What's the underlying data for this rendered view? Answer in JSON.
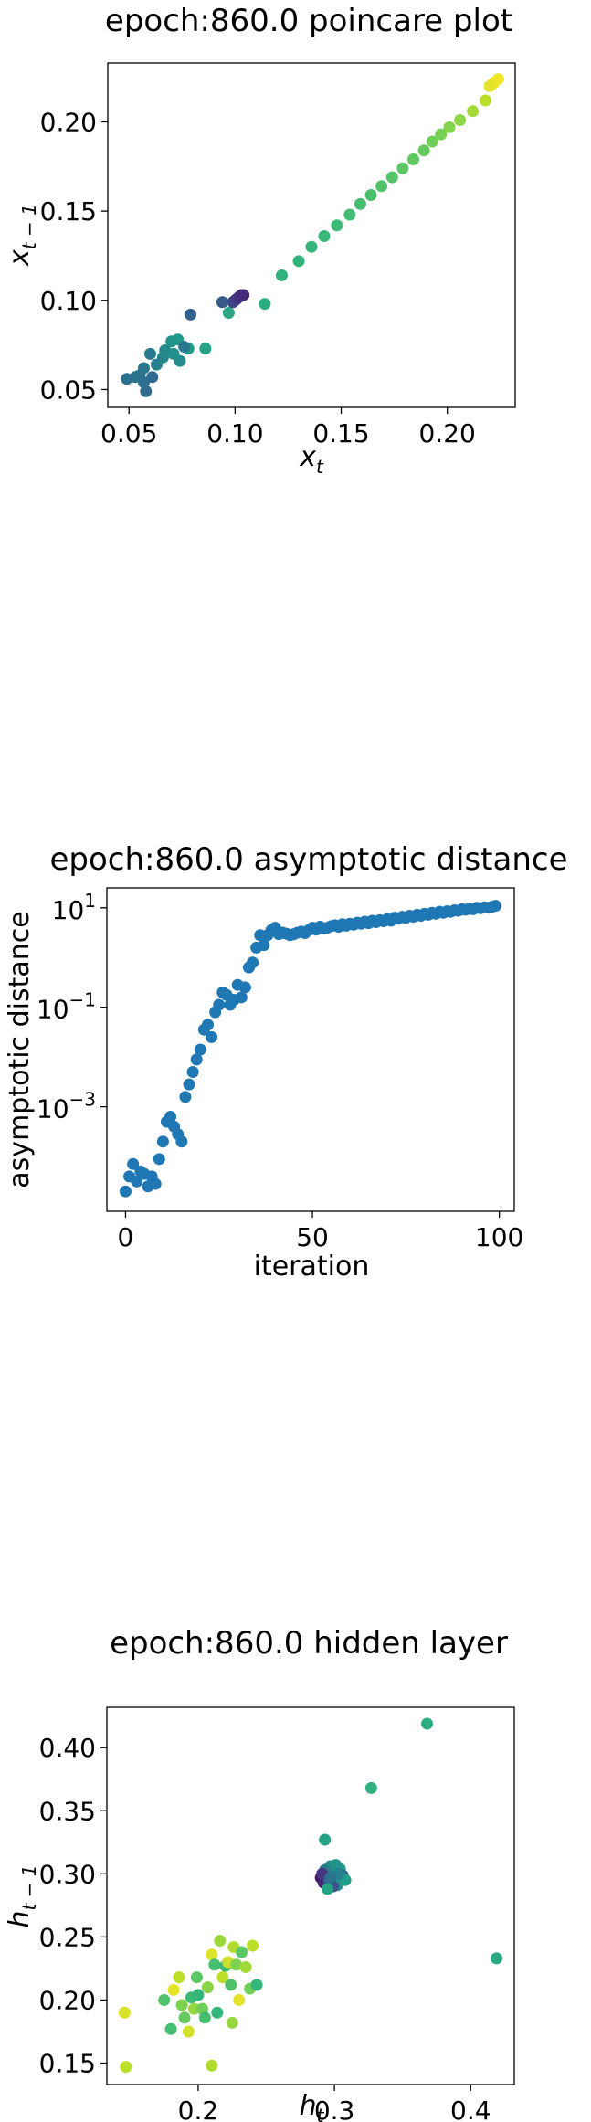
{
  "chart_data": [
    {
      "type": "scatter",
      "title": "epoch:860.0 poincare plot",
      "xlabel": "x_t",
      "ylabel": "x_{t-1}",
      "xlim": [
        0.04,
        0.232
      ],
      "ylim": [
        0.04,
        0.233
      ],
      "xticks": [
        {
          "v": 0.05,
          "label": "0.05"
        },
        {
          "v": 0.1,
          "label": "0.10"
        },
        {
          "v": 0.15,
          "label": "0.15"
        },
        {
          "v": 0.2,
          "label": "0.20"
        }
      ],
      "yticks": [
        {
          "v": 0.05,
          "label": "0.05"
        },
        {
          "v": 0.1,
          "label": "0.10"
        },
        {
          "v": 0.15,
          "label": "0.15"
        },
        {
          "v": 0.2,
          "label": "0.20"
        }
      ],
      "colormap": "viridis",
      "points": [
        {
          "x": 0.224,
          "y": 0.224,
          "c": 0.98
        },
        {
          "x": 0.222,
          "y": 0.222,
          "c": 0.98
        },
        {
          "x": 0.221,
          "y": 0.221,
          "c": 0.97
        },
        {
          "x": 0.22,
          "y": 0.22,
          "c": 0.96
        },
        {
          "x": 0.218,
          "y": 0.212,
          "c": 0.9
        },
        {
          "x": 0.212,
          "y": 0.206,
          "c": 0.86
        },
        {
          "x": 0.206,
          "y": 0.201,
          "c": 0.83
        },
        {
          "x": 0.201,
          "y": 0.197,
          "c": 0.81
        },
        {
          "x": 0.197,
          "y": 0.193,
          "c": 0.79
        },
        {
          "x": 0.193,
          "y": 0.189,
          "c": 0.78
        },
        {
          "x": 0.189,
          "y": 0.184,
          "c": 0.76
        },
        {
          "x": 0.184,
          "y": 0.179,
          "c": 0.75
        },
        {
          "x": 0.179,
          "y": 0.174,
          "c": 0.74
        },
        {
          "x": 0.174,
          "y": 0.169,
          "c": 0.73
        },
        {
          "x": 0.169,
          "y": 0.164,
          "c": 0.72
        },
        {
          "x": 0.164,
          "y": 0.159,
          "c": 0.71
        },
        {
          "x": 0.159,
          "y": 0.154,
          "c": 0.7
        },
        {
          "x": 0.154,
          "y": 0.148,
          "c": 0.69
        },
        {
          "x": 0.148,
          "y": 0.142,
          "c": 0.68
        },
        {
          "x": 0.142,
          "y": 0.136,
          "c": 0.67
        },
        {
          "x": 0.136,
          "y": 0.13,
          "c": 0.66
        },
        {
          "x": 0.13,
          "y": 0.122,
          "c": 0.65
        },
        {
          "x": 0.122,
          "y": 0.114,
          "c": 0.64
        },
        {
          "x": 0.114,
          "y": 0.098,
          "c": 0.62
        },
        {
          "x": 0.097,
          "y": 0.093,
          "c": 0.6
        },
        {
          "x": 0.086,
          "y": 0.073,
          "c": 0.58
        },
        {
          "x": 0.078,
          "y": 0.073,
          "c": 0.55
        },
        {
          "x": 0.073,
          "y": 0.078,
          "c": 0.54
        },
        {
          "x": 0.07,
          "y": 0.077,
          "c": 0.52
        },
        {
          "x": 0.071,
          "y": 0.07,
          "c": 0.5
        },
        {
          "x": 0.074,
          "y": 0.066,
          "c": 0.49
        },
        {
          "x": 0.067,
          "y": 0.072,
          "c": 0.48
        },
        {
          "x": 0.066,
          "y": 0.068,
          "c": 0.46
        },
        {
          "x": 0.063,
          "y": 0.064,
          "c": 0.44
        },
        {
          "x": 0.06,
          "y": 0.07,
          "c": 0.42
        },
        {
          "x": 0.057,
          "y": 0.062,
          "c": 0.4
        },
        {
          "x": 0.055,
          "y": 0.058,
          "c": 0.39
        },
        {
          "x": 0.053,
          "y": 0.057,
          "c": 0.38
        },
        {
          "x": 0.049,
          "y": 0.056,
          "c": 0.37
        },
        {
          "x": 0.057,
          "y": 0.054,
          "c": 0.36
        },
        {
          "x": 0.058,
          "y": 0.049,
          "c": 0.35
        },
        {
          "x": 0.061,
          "y": 0.057,
          "c": 0.34
        },
        {
          "x": 0.076,
          "y": 0.074,
          "c": 0.4
        },
        {
          "x": 0.079,
          "y": 0.092,
          "c": 0.3
        },
        {
          "x": 0.094,
          "y": 0.099,
          "c": 0.28
        },
        {
          "x": 0.099,
          "y": 0.099,
          "c": 0.22
        },
        {
          "x": 0.1,
          "y": 0.1,
          "c": 0.2
        },
        {
          "x": 0.101,
          "y": 0.101,
          "c": 0.18
        },
        {
          "x": 0.102,
          "y": 0.102,
          "c": 0.16
        },
        {
          "x": 0.103,
          "y": 0.103,
          "c": 0.14
        },
        {
          "x": 0.104,
          "y": 0.103,
          "c": 0.12
        }
      ]
    },
    {
      "type": "scatter",
      "title": "epoch:860.0 asymptotic distance",
      "xlabel": "iteration",
      "ylabel": "asymptotic distance",
      "yscale": "log",
      "xlim": [
        -5,
        104
      ],
      "ylim_log10": [
        -5.1,
        1.4
      ],
      "color": "#1f77b4",
      "xticks": [
        {
          "v": 0,
          "label": "0"
        },
        {
          "v": 50,
          "label": "50"
        },
        {
          "v": 100,
          "label": "100"
        }
      ],
      "yticks": [
        {
          "v": -3,
          "base": "10",
          "exp": "−3"
        },
        {
          "v": -1,
          "base": "10",
          "exp": "−1"
        },
        {
          "v": 1,
          "base": "10",
          "exp": "1"
        }
      ],
      "x": [
        0,
        1,
        2,
        3,
        4,
        5,
        6,
        7,
        8,
        9,
        10,
        11,
        12,
        13,
        14,
        15,
        16,
        17,
        18,
        19,
        20,
        21,
        22,
        23,
        24,
        25,
        26,
        27,
        28,
        29,
        30,
        31,
        32,
        33,
        34,
        35,
        36,
        37,
        38,
        39,
        40,
        41,
        42,
        43,
        44,
        45,
        46,
        47,
        48,
        49,
        50,
        51,
        52,
        53,
        54,
        55,
        56,
        57,
        58,
        59,
        60,
        61,
        62,
        63,
        64,
        65,
        66,
        67,
        68,
        69,
        70,
        71,
        72,
        73,
        74,
        75,
        76,
        77,
        78,
        79,
        80,
        81,
        82,
        83,
        84,
        85,
        86,
        87,
        88,
        89,
        90,
        91,
        92,
        93,
        94,
        95,
        96,
        97,
        98,
        99
      ],
      "log10_y": [
        -4.7,
        -4.4,
        -4.15,
        -4.5,
        -4.3,
        -4.35,
        -4.6,
        -4.4,
        -4.55,
        -4.05,
        -3.7,
        -3.3,
        -3.2,
        -3.4,
        -3.55,
        -3.7,
        -2.8,
        -2.55,
        -2.3,
        -2.05,
        -1.85,
        -1.45,
        -1.35,
        -1.6,
        -1.1,
        -0.95,
        -0.7,
        -0.75,
        -0.95,
        -0.85,
        -0.55,
        -0.8,
        -0.6,
        -0.2,
        -0.1,
        0.2,
        0.45,
        0.25,
        0.45,
        0.55,
        0.6,
        0.47,
        0.5,
        0.48,
        0.45,
        0.47,
        0.5,
        0.52,
        0.49,
        0.55,
        0.6,
        0.56,
        0.62,
        0.58,
        0.6,
        0.63,
        0.65,
        0.62,
        0.67,
        0.64,
        0.68,
        0.66,
        0.7,
        0.68,
        0.72,
        0.69,
        0.74,
        0.71,
        0.75,
        0.73,
        0.77,
        0.74,
        0.8,
        0.78,
        0.82,
        0.8,
        0.84,
        0.82,
        0.86,
        0.84,
        0.88,
        0.86,
        0.9,
        0.88,
        0.92,
        0.9,
        0.93,
        0.92,
        0.95,
        0.94,
        0.97,
        0.96,
        0.98,
        0.97,
        1.0,
        0.99,
        1.01,
        1.0,
        1.02,
        1.04
      ]
    },
    {
      "type": "scatter",
      "title": "epoch:860.0 hidden layer",
      "xlabel": "h_t",
      "ylabel": "h_{t-1}",
      "xlim": [
        0.133,
        0.432
      ],
      "ylim": [
        0.133,
        0.432
      ],
      "colormap": "viridis",
      "xticks": [
        {
          "v": 0.2,
          "label": "0.2"
        },
        {
          "v": 0.3,
          "label": "0.3"
        },
        {
          "v": 0.4,
          "label": "0.4"
        }
      ],
      "yticks": [
        {
          "v": 0.15,
          "label": "0.15"
        },
        {
          "v": 0.2,
          "label": "0.20"
        },
        {
          "v": 0.25,
          "label": "0.25"
        },
        {
          "v": 0.3,
          "label": "0.30"
        },
        {
          "v": 0.35,
          "label": "0.35"
        },
        {
          "v": 0.4,
          "label": "0.40"
        }
      ],
      "points": [
        {
          "x": 0.368,
          "y": 0.419,
          "c": 0.62
        },
        {
          "x": 0.327,
          "y": 0.368,
          "c": 0.64
        },
        {
          "x": 0.419,
          "y": 0.233,
          "c": 0.6
        },
        {
          "x": 0.293,
          "y": 0.327,
          "c": 0.58
        },
        {
          "x": 0.146,
          "y": 0.19,
          "c": 0.94
        },
        {
          "x": 0.147,
          "y": 0.147,
          "c": 0.9
        },
        {
          "x": 0.21,
          "y": 0.148,
          "c": 0.88
        },
        {
          "x": 0.175,
          "y": 0.2,
          "c": 0.72
        },
        {
          "x": 0.18,
          "y": 0.177,
          "c": 0.7
        },
        {
          "x": 0.182,
          "y": 0.208,
          "c": 0.96
        },
        {
          "x": 0.186,
          "y": 0.218,
          "c": 0.9
        },
        {
          "x": 0.188,
          "y": 0.196,
          "c": 0.8
        },
        {
          "x": 0.19,
          "y": 0.186,
          "c": 0.76
        },
        {
          "x": 0.193,
          "y": 0.175,
          "c": 0.93
        },
        {
          "x": 0.195,
          "y": 0.202,
          "c": 0.68
        },
        {
          "x": 0.197,
          "y": 0.193,
          "c": 0.84
        },
        {
          "x": 0.199,
          "y": 0.218,
          "c": 0.74
        },
        {
          "x": 0.2,
          "y": 0.204,
          "c": 0.66
        },
        {
          "x": 0.203,
          "y": 0.193,
          "c": 0.78
        },
        {
          "x": 0.205,
          "y": 0.186,
          "c": 0.7
        },
        {
          "x": 0.207,
          "y": 0.21,
          "c": 0.82
        },
        {
          "x": 0.21,
          "y": 0.236,
          "c": 0.95
        },
        {
          "x": 0.212,
          "y": 0.228,
          "c": 0.7
        },
        {
          "x": 0.214,
          "y": 0.19,
          "c": 0.66
        },
        {
          "x": 0.216,
          "y": 0.247,
          "c": 0.85
        },
        {
          "x": 0.218,
          "y": 0.218,
          "c": 0.9
        },
        {
          "x": 0.22,
          "y": 0.227,
          "c": 0.68
        },
        {
          "x": 0.222,
          "y": 0.23,
          "c": 0.92
        },
        {
          "x": 0.224,
          "y": 0.212,
          "c": 0.72
        },
        {
          "x": 0.226,
          "y": 0.242,
          "c": 0.88
        },
        {
          "x": 0.228,
          "y": 0.228,
          "c": 0.8
        },
        {
          "x": 0.23,
          "y": 0.2,
          "c": 0.96
        },
        {
          "x": 0.232,
          "y": 0.238,
          "c": 0.74
        },
        {
          "x": 0.235,
          "y": 0.226,
          "c": 0.86
        },
        {
          "x": 0.238,
          "y": 0.209,
          "c": 0.78
        },
        {
          "x": 0.24,
          "y": 0.243,
          "c": 0.9
        },
        {
          "x": 0.243,
          "y": 0.212,
          "c": 0.66
        },
        {
          "x": 0.225,
          "y": 0.182,
          "c": 0.84
        },
        {
          "x": 0.29,
          "y": 0.297,
          "c": 0.05
        },
        {
          "x": 0.292,
          "y": 0.293,
          "c": 0.1
        },
        {
          "x": 0.294,
          "y": 0.299,
          "c": 0.2
        },
        {
          "x": 0.296,
          "y": 0.295,
          "c": 0.3
        },
        {
          "x": 0.298,
          "y": 0.302,
          "c": 0.4
        },
        {
          "x": 0.3,
          "y": 0.297,
          "c": 0.45
        },
        {
          "x": 0.302,
          "y": 0.291,
          "c": 0.5
        },
        {
          "x": 0.304,
          "y": 0.304,
          "c": 0.55
        },
        {
          "x": 0.306,
          "y": 0.299,
          "c": 0.35
        },
        {
          "x": 0.297,
          "y": 0.306,
          "c": 0.48
        },
        {
          "x": 0.293,
          "y": 0.303,
          "c": 0.42
        },
        {
          "x": 0.301,
          "y": 0.307,
          "c": 0.52
        },
        {
          "x": 0.299,
          "y": 0.29,
          "c": 0.25
        },
        {
          "x": 0.295,
          "y": 0.288,
          "c": 0.58
        },
        {
          "x": 0.308,
          "y": 0.295,
          "c": 0.56
        },
        {
          "x": 0.291,
          "y": 0.3,
          "c": 0.15
        },
        {
          "x": 0.303,
          "y": 0.3,
          "c": 0.44
        },
        {
          "x": 0.297,
          "y": 0.297,
          "c": 0.38
        }
      ]
    }
  ]
}
